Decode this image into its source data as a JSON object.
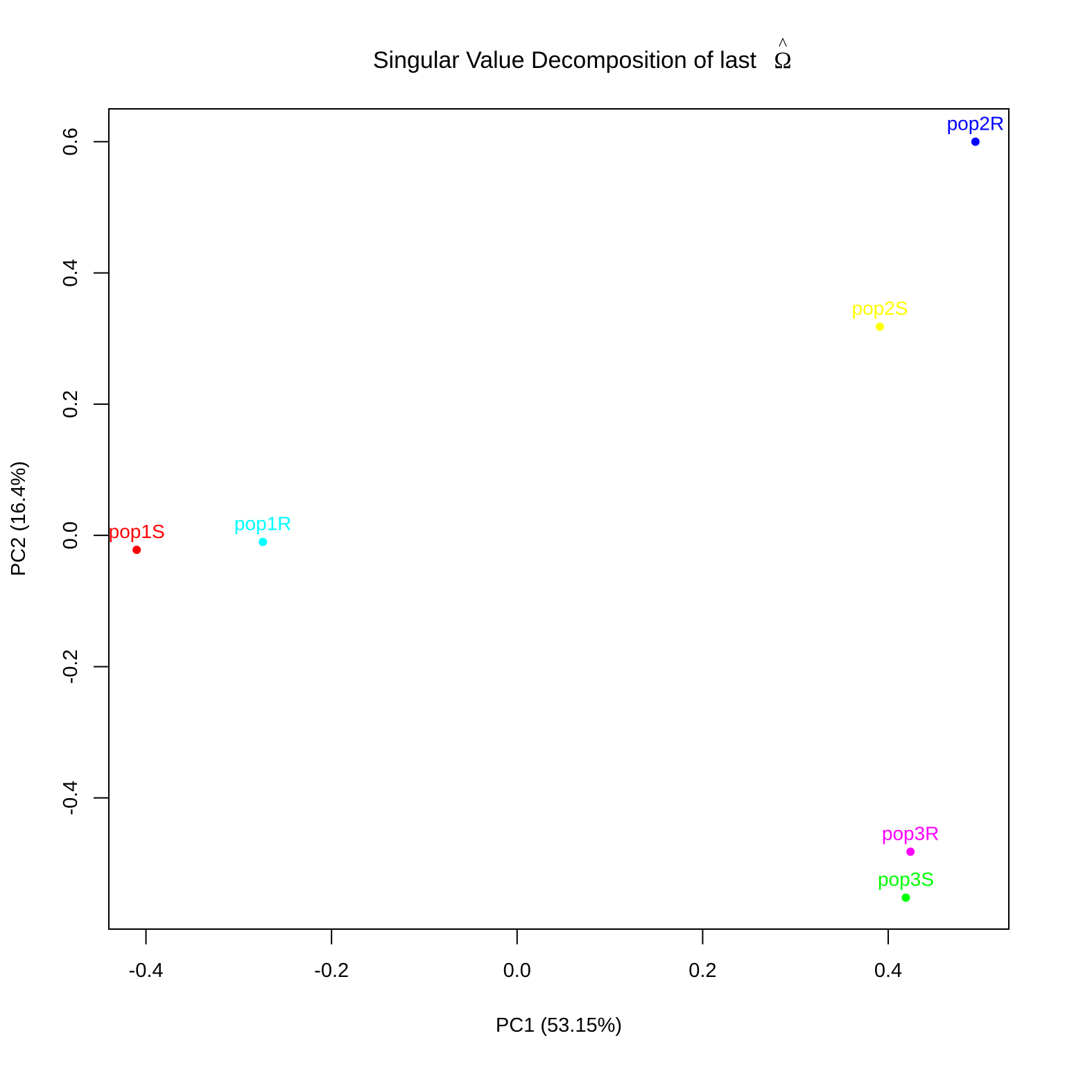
{
  "chart_data": {
    "type": "scatter",
    "title": "Singular Value Decomposition of last",
    "title_symbol": "Ω",
    "title_symbol_accent": "^",
    "xlabel": "PC1 (53.15%)",
    "ylabel": "PC2 (16.4%)",
    "xlim": [
      -0.44,
      0.53
    ],
    "ylim": [
      -0.6,
      0.65
    ],
    "xticks": [
      -0.4,
      -0.2,
      0.0,
      0.2,
      0.4
    ],
    "xtick_labels": [
      "-0.4",
      "-0.2",
      "0.0",
      "0.2",
      "0.4"
    ],
    "yticks": [
      -0.4,
      -0.2,
      0.0,
      0.2,
      0.4,
      0.6
    ],
    "ytick_labels": [
      "-0.4",
      "-0.2",
      "0.0",
      "0.2",
      "0.4",
      "0.6"
    ],
    "grid": false,
    "points": [
      {
        "label": "pop1S",
        "x": -0.41,
        "y": -0.022,
        "color": "#ff0000"
      },
      {
        "label": "pop1R",
        "x": -0.274,
        "y": -0.01,
        "color": "#00ffff"
      },
      {
        "label": "pop2R",
        "x": 0.494,
        "y": 0.6,
        "color": "#0000ff"
      },
      {
        "label": "pop2S",
        "x": 0.391,
        "y": 0.318,
        "color": "#ffff00"
      },
      {
        "label": "pop3R",
        "x": 0.424,
        "y": -0.482,
        "color": "#ff00ff"
      },
      {
        "label": "pop3S",
        "x": 0.419,
        "y": -0.552,
        "color": "#00ff00"
      }
    ]
  }
}
